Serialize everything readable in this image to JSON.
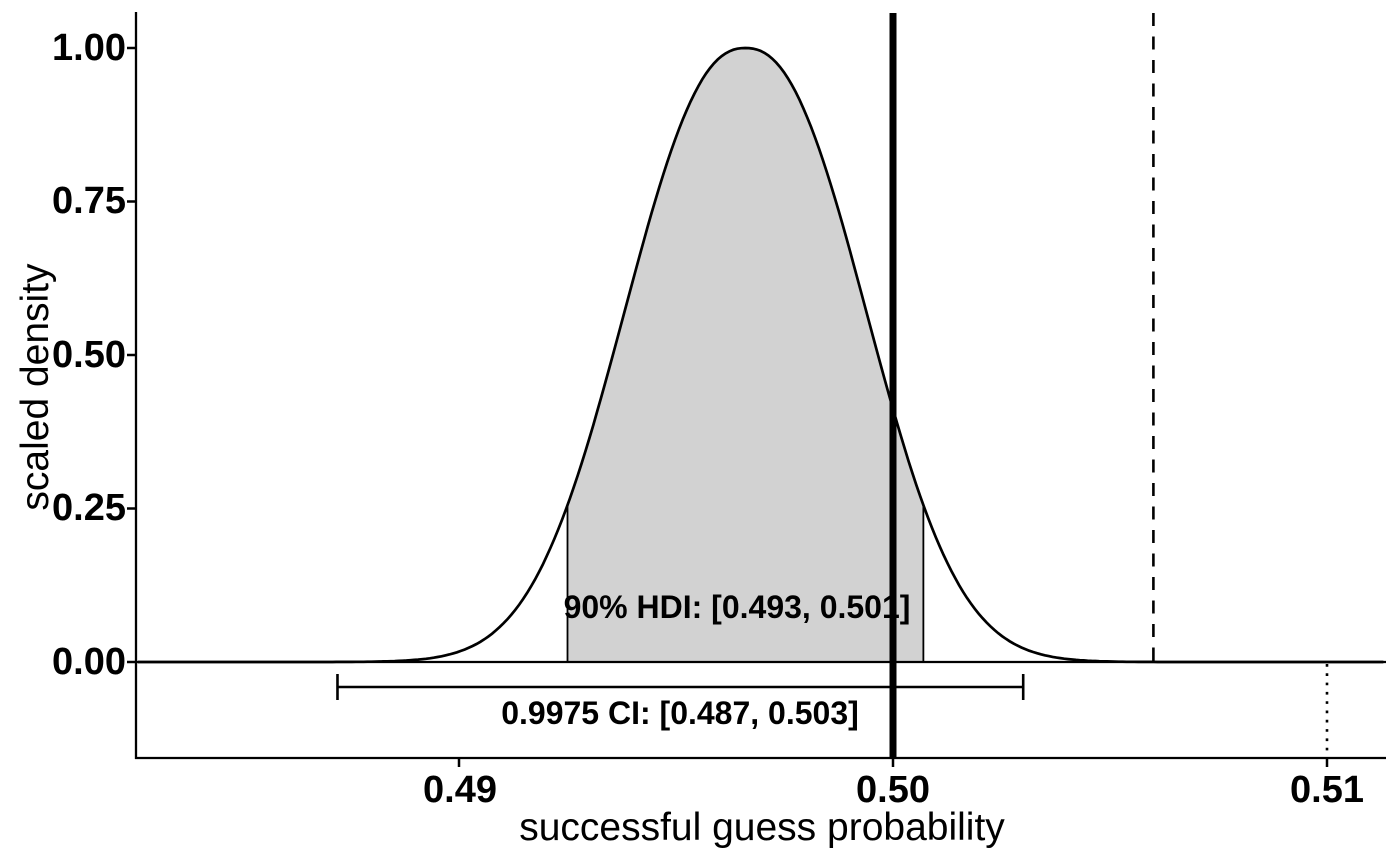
{
  "chart_data": {
    "type": "area",
    "subtype": "scaled-density-posterior",
    "title": "",
    "xlabel": "successful guess probability",
    "ylabel": "scaled density",
    "x_ticks": [
      "0.49",
      "0.50",
      "0.51"
    ],
    "x_tick_values": [
      0.49,
      0.5,
      0.51
    ],
    "y_ticks": [
      "1.00",
      "0.75",
      "0.50",
      "0.25",
      "0.00"
    ],
    "y_tick_values": [
      1.0,
      0.75,
      0.5,
      0.25,
      0.0
    ],
    "x_range_drawn": [
      0.4826,
      0.5113
    ],
    "y_range": [
      0,
      1
    ],
    "grid": false,
    "legend": false,
    "density": {
      "shape": "unimodal-kde",
      "mean": 0.4966,
      "scale": 0.00265,
      "gen_gauss_power": 2.3,
      "peak_scaled_density": 1.0
    },
    "hdi": {
      "label": "90% HDI: [0.493, 0.501]",
      "level": "90%",
      "lower": 0.493,
      "upper": 0.501,
      "shade_lower": 0.4925,
      "shade_upper": 0.5007
    },
    "ci": {
      "label": "0.9975 CI: [0.487, 0.503]",
      "level": "0.9975",
      "lower": 0.487,
      "upper": 0.503,
      "bar_lower": 0.4872,
      "bar_upper": 0.503
    },
    "reference_lines": [
      {
        "x": 0.5,
        "style": "solid",
        "thickness": "thick",
        "extent": "full-height"
      },
      {
        "x": 0.506,
        "style": "dashed",
        "thickness": "thin",
        "extent": "above-baseline"
      },
      {
        "x": 0.51,
        "style": "dotted",
        "thickness": "thin",
        "extent": "below-baseline"
      }
    ],
    "colors": {
      "curve": "#000000",
      "hdi_fill": "#d2d2d2",
      "text": "#000000",
      "background": "#ffffff"
    }
  }
}
